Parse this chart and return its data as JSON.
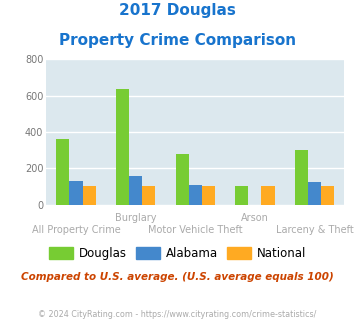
{
  "title_line1": "2017 Douglas",
  "title_line2": "Property Crime Comparison",
  "title_color": "#1874CD",
  "categories": [
    "All Property Crime",
    "Burglary",
    "Motor Vehicle Theft",
    "Arson",
    "Larceny & Theft"
  ],
  "douglas": [
    360,
    635,
    280,
    100,
    300
  ],
  "alabama": [
    130,
    155,
    110,
    0,
    125
  ],
  "national": [
    100,
    100,
    100,
    100,
    100
  ],
  "douglas_color": "#77cc33",
  "alabama_color": "#4488cc",
  "national_color": "#ffaa22",
  "ylim": [
    0,
    800
  ],
  "yticks": [
    0,
    200,
    400,
    600,
    800
  ],
  "plot_bg_color": "#dce8ee",
  "grid_color": "#ffffff",
  "note": "Compared to U.S. average. (U.S. average equals 100)",
  "note_color": "#cc4400",
  "copyright": "© 2024 CityRating.com - https://www.cityrating.com/crime-statistics/",
  "copyright_color": "#aaaaaa",
  "legend_labels": [
    "Douglas",
    "Alabama",
    "National"
  ],
  "bar_width": 0.22,
  "group_positions": [
    0,
    1,
    2,
    3,
    4
  ],
  "top_xlabels": [
    [
      1,
      "Burglary"
    ],
    [
      3,
      "Arson"
    ]
  ],
  "bottom_xlabels": [
    [
      0,
      "All Property Crime"
    ],
    [
      2,
      "Motor Vehicle Theft"
    ],
    [
      4,
      "Larceny & Theft"
    ]
  ]
}
